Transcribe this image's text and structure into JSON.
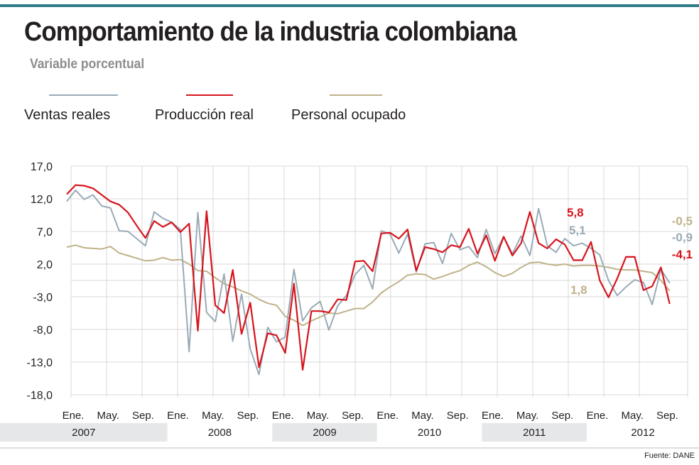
{
  "header": {
    "title": "Comportamiento de la industria colombiana",
    "subtitle": "Variable porcentual"
  },
  "source": "Fuente: DANE",
  "colors": {
    "accent_bar": "#2e7c87",
    "ventas": "#9aabb7",
    "produccion": "#d7141d",
    "personal": "#bfb28a",
    "grid": "#d9d9d9",
    "year_band": "#e6e7e8"
  },
  "chart_data": {
    "type": "line",
    "title": "Comportamiento de la industria colombiana",
    "subtitle": "Variable porcentual",
    "ylim": [
      -18,
      17
    ],
    "yticks": [
      "17,0",
      "12,0",
      "7,0",
      "2,0",
      "-3,0",
      "-8,0",
      "-13,0",
      "-18,0"
    ],
    "ytick_values": [
      17,
      12,
      7,
      2,
      -3,
      -8,
      -13,
      -18
    ],
    "x_month_ticks": [
      "Ene.",
      "May.",
      "Sep.",
      "Ene.",
      "May.",
      "Sep.",
      "Ene.",
      "May.",
      "Sep.",
      "Ene.",
      "May.",
      "Sep.",
      "Ene.",
      "May.",
      "Sep.",
      "Ene.",
      "May.",
      "Sep."
    ],
    "x_month_tick_index": [
      0,
      4,
      8,
      12,
      16,
      20,
      24,
      28,
      32,
      36,
      40,
      44,
      48,
      52,
      56,
      60,
      64,
      68
    ],
    "years": [
      "2007",
      "2008",
      "2009",
      "2010",
      "2011",
      "2012"
    ],
    "grid": true,
    "legend_position": "top",
    "series": [
      {
        "name": "Ventas reales",
        "color": "#9aabb7",
        "values": [
          11.6,
          13.3,
          11.9,
          12.6,
          10.9,
          10.6,
          7.1,
          7.0,
          5.9,
          4.8,
          10.0,
          9.0,
          8.4,
          7.3,
          -11.4,
          9.9,
          -5.4,
          -6.8,
          0.5,
          -9.8,
          -2.6,
          -11.0,
          -14.9,
          -7.7,
          -9.9,
          -9.2,
          1.2,
          -6.7,
          -4.7,
          -3.7,
          -8.1,
          -4.4,
          -2.8,
          0.4,
          1.8,
          -1.8,
          7.1,
          6.6,
          3.7,
          6.6,
          0.8,
          5.1,
          5.3,
          2.1,
          6.7,
          4.2,
          4.7,
          3.0,
          7.3,
          3.6,
          6.2,
          3.6,
          6.3,
          3.3,
          10.5,
          4.8,
          3.8,
          5.9,
          4.8,
          5.2,
          4.4,
          3.4,
          -0.5,
          -2.8,
          -1.5,
          -0.4,
          -0.8,
          -4.2,
          1.2,
          -0.9
        ],
        "label": "5,1",
        "label_2": "-0,9"
      },
      {
        "name": "Producción real",
        "color": "#d7141d",
        "values": [
          12.7,
          14.1,
          14.0,
          13.6,
          12.6,
          11.6,
          11.1,
          9.9,
          7.9,
          6.0,
          8.6,
          7.7,
          8.4,
          6.9,
          8.2,
          -8.2,
          10.1,
          -4.3,
          -5.5,
          1.1,
          -8.7,
          -3.9,
          -13.8,
          -8.6,
          -8.9,
          -11.6,
          -1.0,
          -14.2,
          -5.2,
          -5.2,
          -5.4,
          -3.4,
          -3.5,
          2.4,
          2.5,
          0.9,
          6.7,
          6.8,
          5.9,
          7.3,
          1.0,
          4.6,
          4.3,
          3.8,
          4.9,
          4.6,
          7.4,
          3.6,
          6.4,
          2.5,
          6.2,
          3.3,
          5.2,
          10.0,
          5.2,
          4.4,
          5.8,
          5.0,
          2.6,
          2.6,
          5.4,
          -0.5,
          -3.1,
          -0.2,
          3.1,
          3.1,
          -2.0,
          -1.4,
          1.5,
          -4.1
        ],
        "label": "5,8",
        "label_2": "-4,1"
      },
      {
        "name": "Personal ocupado",
        "color": "#bfb28a",
        "values": [
          4.6,
          4.9,
          4.5,
          4.4,
          4.3,
          4.7,
          3.7,
          3.3,
          2.9,
          2.5,
          2.6,
          3.0,
          2.6,
          2.7,
          2.0,
          1.0,
          0.9,
          -0.1,
          -1.0,
          -1.5,
          -2.1,
          -2.6,
          -3.4,
          -4.0,
          -4.3,
          -6.0,
          -6.6,
          -7.4,
          -6.7,
          -6.1,
          -5.5,
          -5.6,
          -5.2,
          -4.8,
          -4.8,
          -3.8,
          -2.4,
          -1.5,
          -0.7,
          0.3,
          0.5,
          0.4,
          -0.3,
          0.1,
          0.6,
          1.0,
          1.8,
          2.3,
          1.6,
          0.7,
          0.1,
          0.6,
          1.5,
          2.2,
          2.3,
          2.0,
          1.8,
          2.0,
          1.7,
          1.8,
          1.8,
          1.7,
          1.5,
          1.2,
          1.1,
          1.1,
          0.9,
          0.7,
          -0.5,
          -2.1
        ],
        "label": "1,8",
        "label_2": "-0,5"
      }
    ]
  }
}
